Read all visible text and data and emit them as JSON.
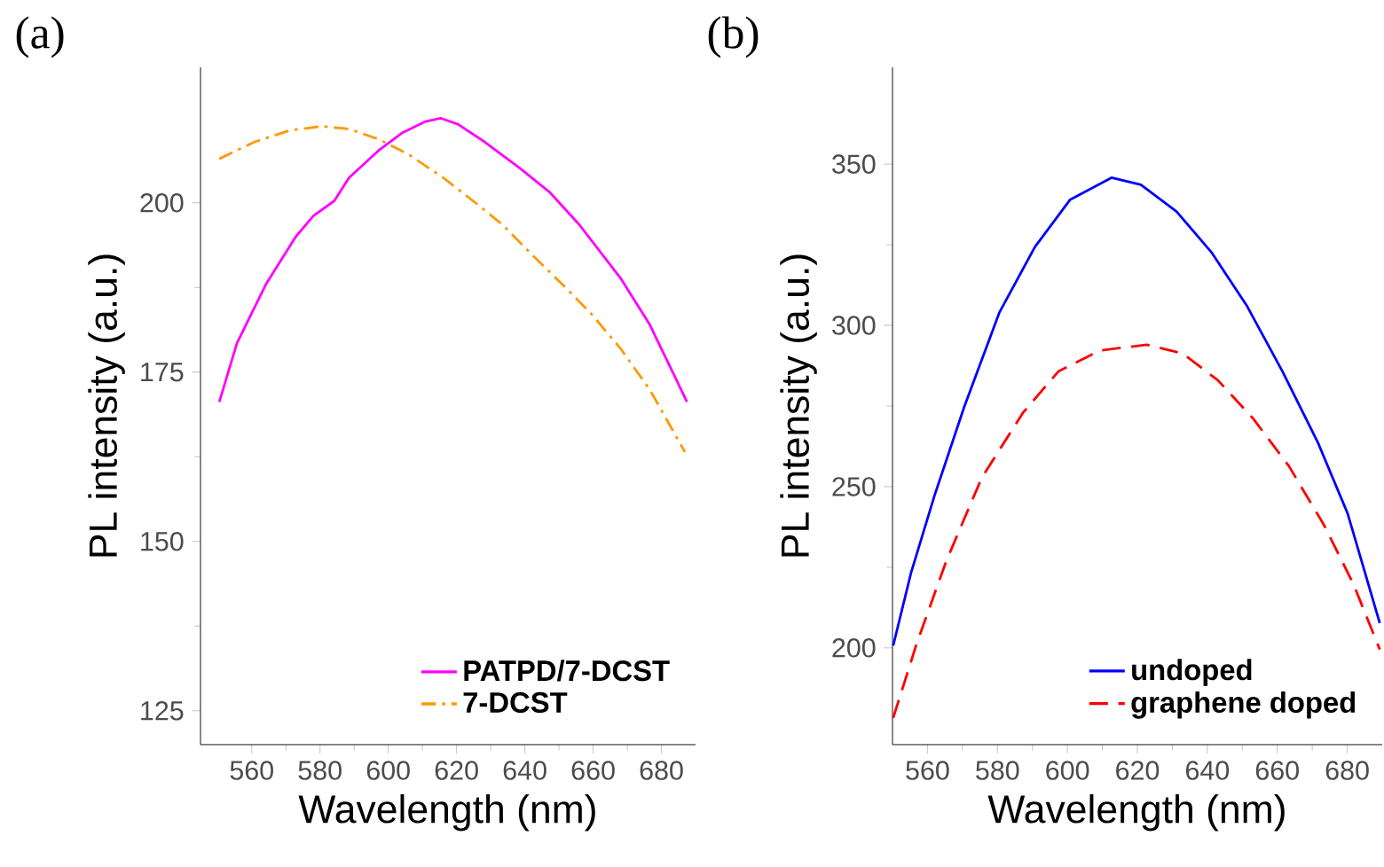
{
  "chart_data": [
    {
      "type": "line",
      "xlabel": "Wavelength (nm)",
      "ylabel": "PL intensity (a.u.)",
      "annotations": [
        "(a)"
      ],
      "xlim": [
        545,
        690
      ],
      "ylim": [
        120,
        220
      ],
      "xticks": [
        560,
        580,
        600,
        620,
        640,
        660,
        680
      ],
      "yticks": [
        125,
        150,
        175,
        200
      ],
      "legend": "bottom right",
      "grid": false,
      "series": [
        {
          "name": "PATPD/7-DCST",
          "color": "#ff00ff",
          "line_style": "solid",
          "x": [
            550.5,
            555.7,
            564.3,
            572.9,
            578.1,
            584.2,
            588.5,
            597.1,
            604.0,
            610.9,
            615.3,
            620.4,
            628.2,
            638.6,
            647.2,
            655.9,
            668.0,
            676.6,
            687.5
          ],
          "values": [
            170.6,
            179.3,
            188.1,
            195.0,
            198.1,
            200.3,
            203.7,
            207.7,
            210.3,
            212.0,
            212.5,
            211.6,
            209.0,
            205.1,
            201.6,
            196.8,
            188.9,
            182.0,
            170.6
          ]
        },
        {
          "name": "7-DCST",
          "color": "#ff9900",
          "line_style": "dashdot",
          "x": [
            550.5,
            560.9,
            571.2,
            580.7,
            588.5,
            597.1,
            605.8,
            616.1,
            624.8,
            633.4,
            642.0,
            650.7,
            659.3,
            668.0,
            676.6,
            686.9
          ],
          "values": [
            206.5,
            209.0,
            210.7,
            211.3,
            210.9,
            209.4,
            207.2,
            203.7,
            200.3,
            196.8,
            192.4,
            188.1,
            183.7,
            178.5,
            172.4,
            163.2
          ]
        }
      ]
    },
    {
      "type": "line",
      "xlabel": "Wavelength (nm)",
      "ylabel": "PL intensity (a.u.)",
      "annotations": [
        "(b)"
      ],
      "xlim": [
        550,
        690
      ],
      "ylim": [
        170,
        380
      ],
      "xticks": [
        560,
        580,
        600,
        620,
        640,
        660,
        680
      ],
      "yticks": [
        200,
        250,
        300,
        350
      ],
      "legend": "bottom right",
      "grid": false,
      "series": [
        {
          "name": "undoped",
          "color": "#0000ff",
          "line_style": "solid",
          "x": [
            550.2,
            555.3,
            562.0,
            570.5,
            580.6,
            590.7,
            600.8,
            612.6,
            621.0,
            631.2,
            641.3,
            651.4,
            661.5,
            671.6,
            680.1,
            689.3
          ],
          "values": [
            200.7,
            223.3,
            247.2,
            274.7,
            304.1,
            324.3,
            339.0,
            345.8,
            343.6,
            335.3,
            322.5,
            305.9,
            285.7,
            263.7,
            241.7,
            207.7
          ]
        },
        {
          "name": "graphene doped",
          "color": "#ff0000",
          "line_style": "dashed",
          "x": [
            550.2,
            556.9,
            565.4,
            575.5,
            587.3,
            597.4,
            609.2,
            622.7,
            632.9,
            643.0,
            653.1,
            663.3,
            673.4,
            681.8,
            689.3
          ],
          "values": [
            178.3,
            201.3,
            227.0,
            252.7,
            272.9,
            285.7,
            292.2,
            294.0,
            291.3,
            283.0,
            271.1,
            256.4,
            238.0,
            219.7,
            199.5
          ]
        }
      ]
    }
  ]
}
